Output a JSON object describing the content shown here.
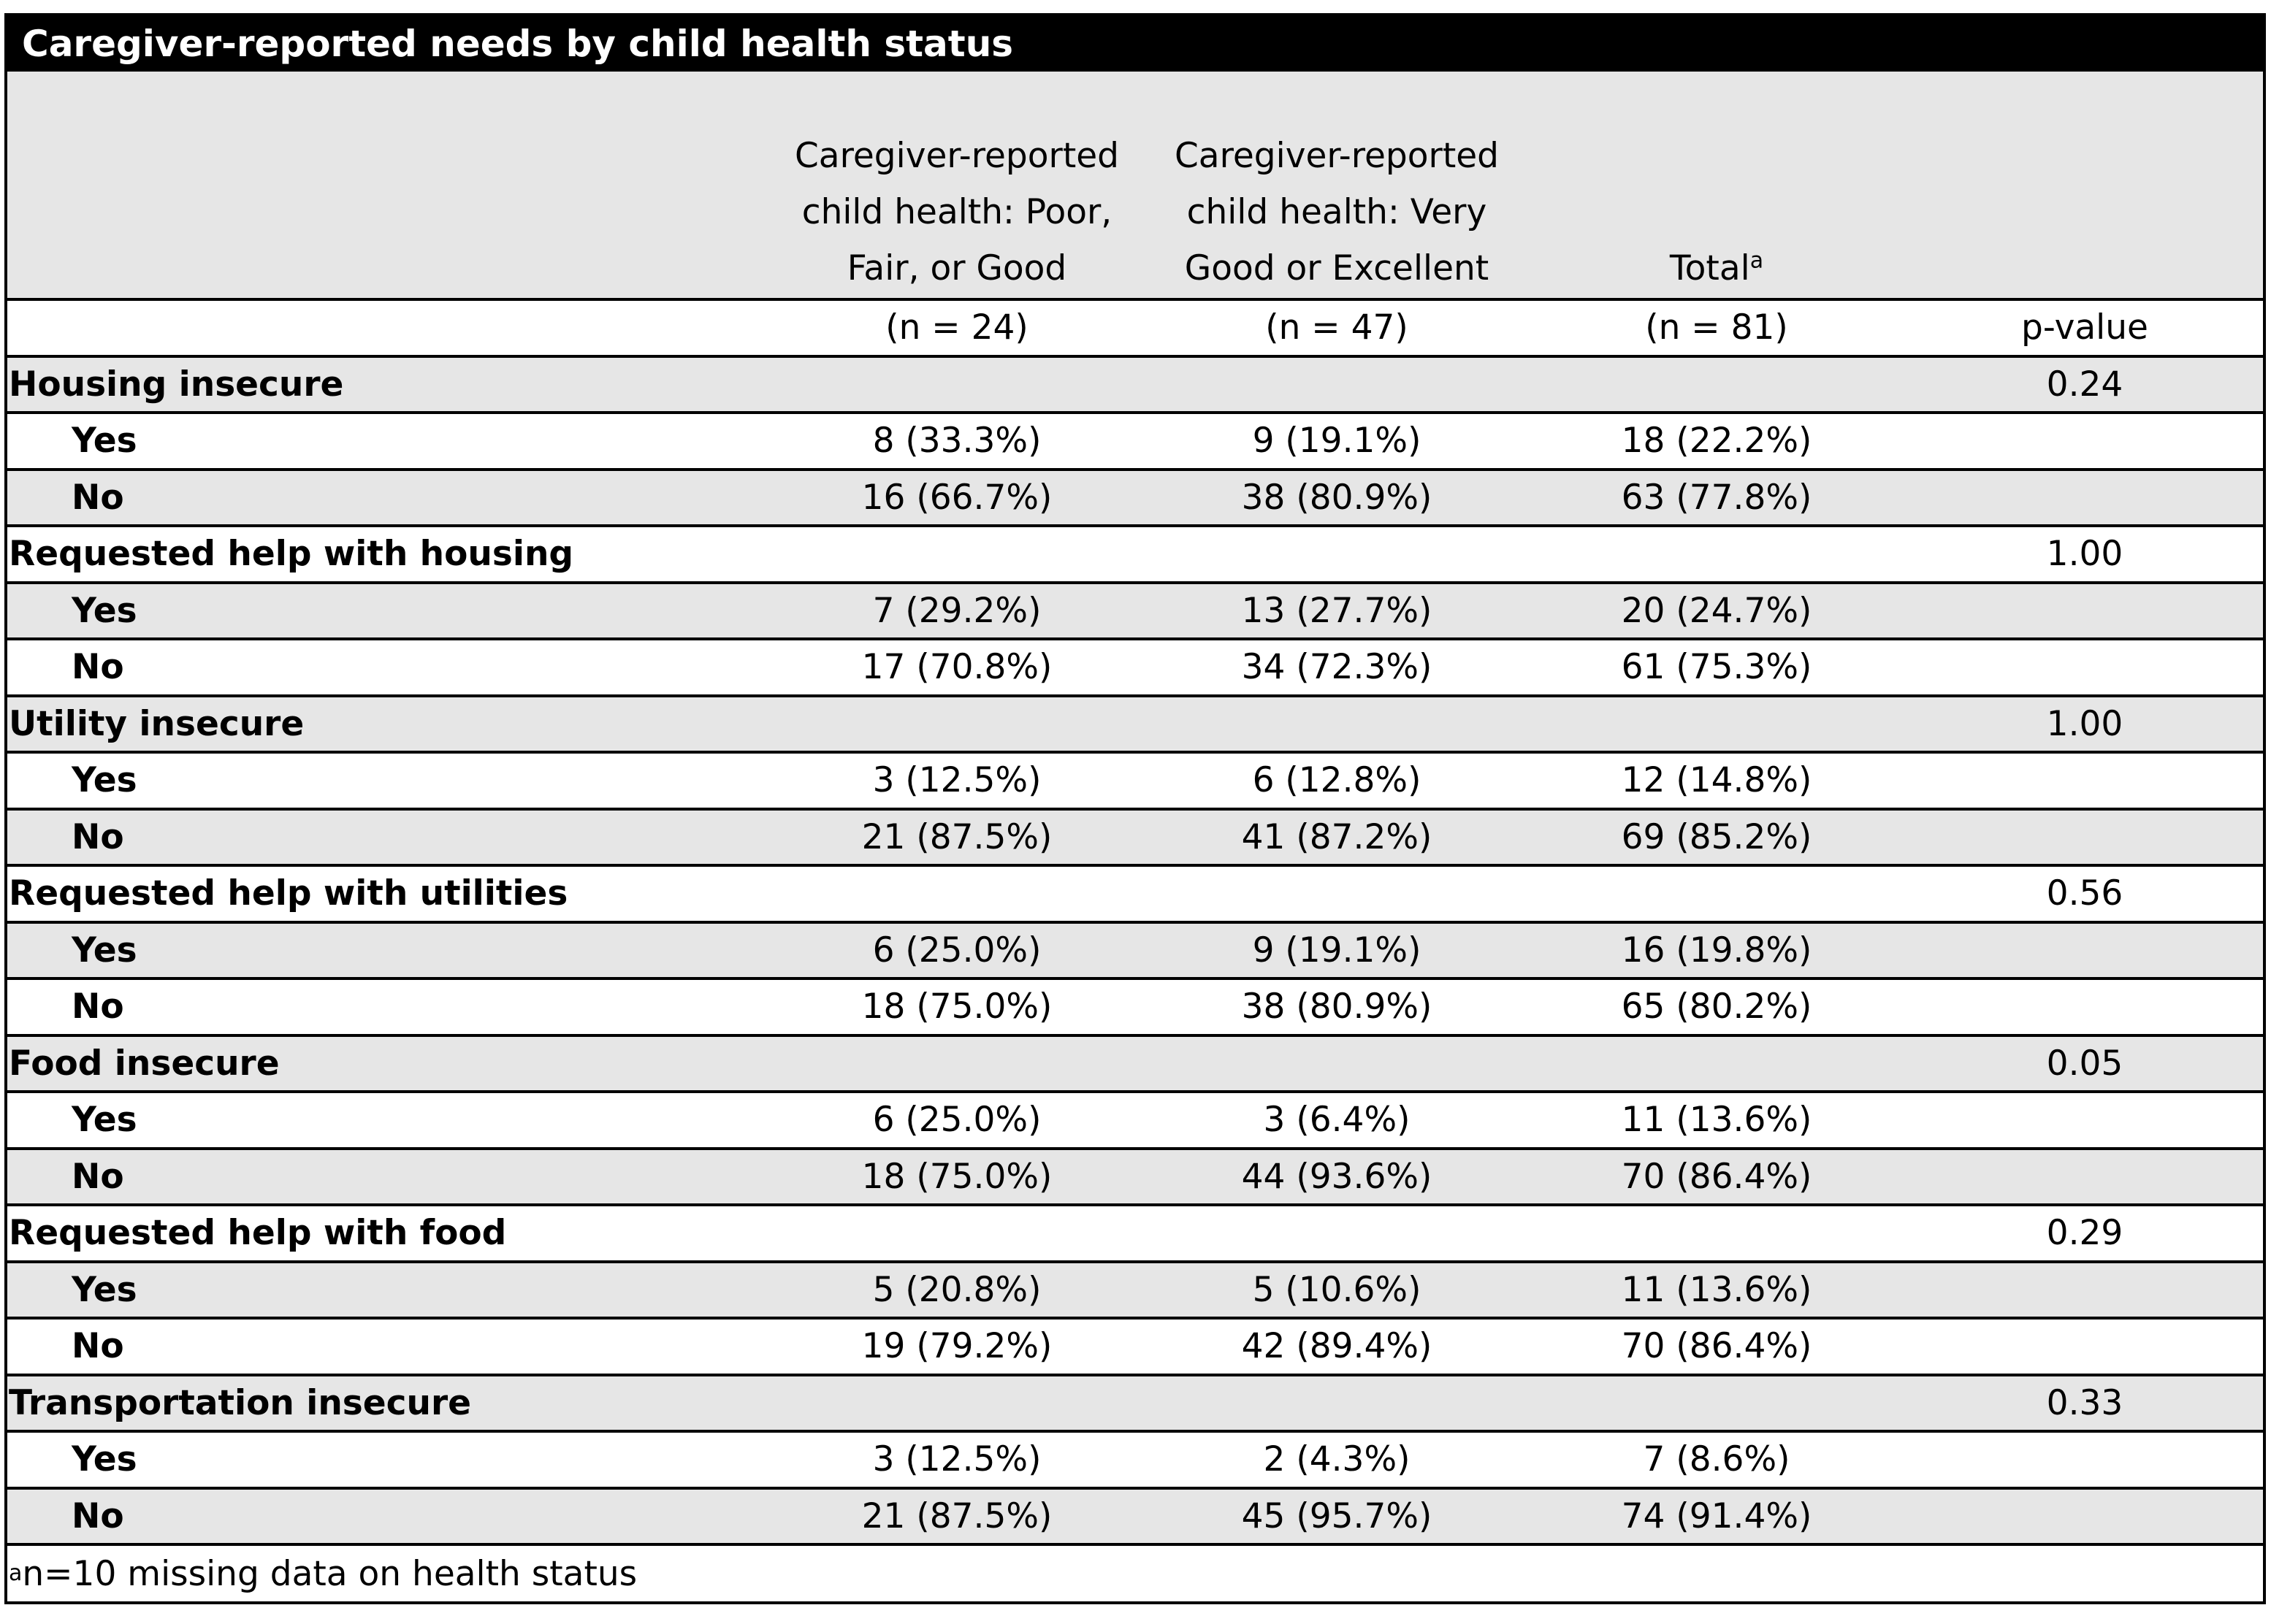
{
  "title": "Caregiver-reported needs by child health status",
  "header": {
    "col1": "Caregiver-reported child health: Poor, Fair, or Good",
    "col2": "Caregiver-reported child health: Very Good or Excellent",
    "col3": "Total",
    "col3_sup": "a",
    "col1_n": "(n = 24)",
    "col2_n": "(n = 47)",
    "col3_n": "(n = 81)",
    "col4": "p-value"
  },
  "groups": [
    {
      "label": "Housing insecure",
      "p": "0.24",
      "yes": [
        "Yes",
        "8 (33.3%)",
        "9 (19.1%)",
        "18 (22.2%)"
      ],
      "no": [
        "No",
        "16 (66.7%)",
        "38 (80.9%)",
        "63 (77.8%)"
      ]
    },
    {
      "label": "Requested help with housing",
      "p": "1.00",
      "yes": [
        "Yes",
        "7 (29.2%)",
        "13 (27.7%)",
        "20 (24.7%)"
      ],
      "no": [
        "No",
        "17 (70.8%)",
        "34 (72.3%)",
        "61 (75.3%)"
      ]
    },
    {
      "label": "Utility insecure",
      "p": "1.00",
      "yes": [
        "Yes",
        "3 (12.5%)",
        "6 (12.8%)",
        "12 (14.8%)"
      ],
      "no": [
        "No",
        "21 (87.5%)",
        "41 (87.2%)",
        "69 (85.2%)"
      ]
    },
    {
      "label": "Requested help with utilities",
      "p": "0.56",
      "yes": [
        "Yes",
        "6 (25.0%)",
        "9 (19.1%)",
        "16 (19.8%)"
      ],
      "no": [
        "No",
        "18 (75.0%)",
        "38 (80.9%)",
        "65 (80.2%)"
      ]
    },
    {
      "label": "Food insecure",
      "p": "0.05",
      "yes": [
        "Yes",
        "6 (25.0%)",
        "3 (6.4%)",
        "11 (13.6%)"
      ],
      "no": [
        "No",
        "18 (75.0%)",
        "44 (93.6%)",
        "70 (86.4%)"
      ]
    },
    {
      "label": "Requested help with food",
      "p": "0.29",
      "yes": [
        "Yes",
        "5 (20.8%)",
        "5 (10.6%)",
        "11 (13.6%)"
      ],
      "no": [
        "No",
        "19 (79.2%)",
        "42 (89.4%)",
        "70 (86.4%)"
      ]
    },
    {
      "label": "Transportation insecure",
      "p": "0.33",
      "yes": [
        "Yes",
        "3 (12.5%)",
        "2 (4.3%)",
        "7 (8.6%)"
      ],
      "no": [
        "No",
        "21 (87.5%)",
        "45 (95.7%)",
        "74 (91.4%)"
      ]
    }
  ],
  "footnote_sup": "a",
  "footnote": "n=10 missing data on health status"
}
